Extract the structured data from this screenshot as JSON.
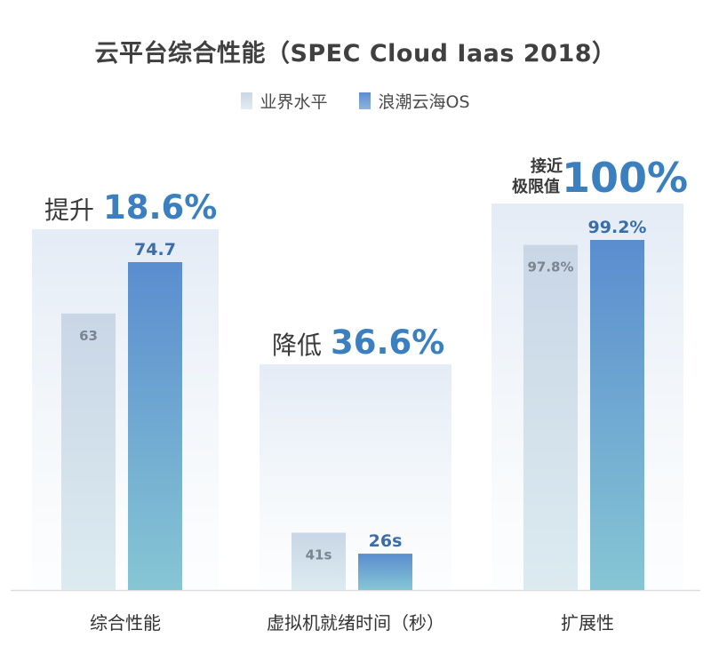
{
  "chart_data": {
    "type": "bar",
    "title": "云平台综合性能（SPEC Cloud Iaas 2018）",
    "legend": [
      "业界水平",
      "浪潮云海OS"
    ],
    "groups": [
      {
        "category": "综合性能",
        "values": [
          63,
          74.7
        ],
        "labels": [
          "63",
          "74.7"
        ],
        "max": 74.7,
        "callout_prefix": "提升",
        "callout_prefix_lines": [
          "提升"
        ],
        "callout_value": "18.6%"
      },
      {
        "category": "虚拟机就绪时间（秒）",
        "values": [
          41,
          26
        ],
        "labels": [
          "41s",
          "26s"
        ],
        "max": 82,
        "callout_prefix": "降低",
        "callout_prefix_lines": [
          "降低"
        ],
        "callout_value": "36.6%"
      },
      {
        "category": "扩展性",
        "values": [
          97.8,
          99.2
        ],
        "labels": [
          "97.8%",
          "99.2%"
        ],
        "max": 99.2,
        "callout_prefix": "接近极限值",
        "callout_prefix_lines": [
          "接近",
          "极限值"
        ],
        "callout_value": "100%"
      }
    ]
  },
  "colors": {
    "industry_top": "#c9d6e6",
    "industry_bottom": "#dcebf0",
    "os_top": "#5a8dcf",
    "os_bottom": "#86c6d4",
    "accent_text": "#3b7fbf",
    "label_dark": "#3a6ea8",
    "label_gray": "#7a8590"
  }
}
